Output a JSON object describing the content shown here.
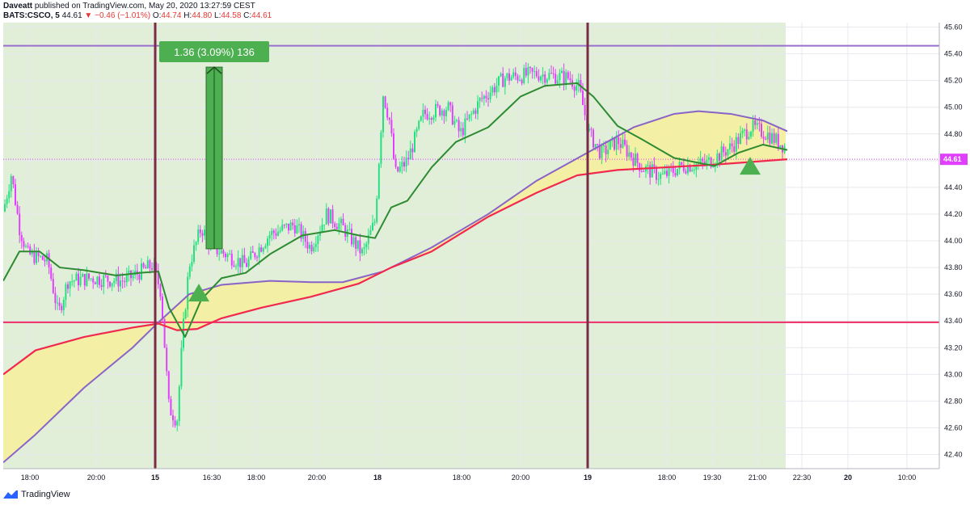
{
  "header": {
    "publisher": "Daveatt",
    "published_text": "published on TradingView.com, May 20, 2020 13:27:59 CEST",
    "symbol": "BATS:CSCO, 5",
    "last": "44.61",
    "change": "−0.46 (−1.01%)",
    "o_label": "O:",
    "o_value": "44.74",
    "h_label": "H:",
    "h_value": "44.80",
    "l_label": "L:",
    "l_value": "44.58",
    "c_label": "C:",
    "c_value": "44.61"
  },
  "brand": {
    "name": "TradingView",
    "icon": "tradingview-logo-icon"
  },
  "colors": {
    "bull": "#26e07f",
    "bear": "#e040fb",
    "session_bg": "#e1efd9",
    "fast_ma": "#2e8b32",
    "slow_ma_red": "#f2294f",
    "slow_ma_purple": "#8a63c7",
    "cloud": "#f6ee9a",
    "level_line": "#ee2d64",
    "top_line": "#9a6fd2",
    "separator": "#7b2b45",
    "arrow": "#4caf50",
    "last_badge": "#e040fb"
  },
  "chart_data": {
    "type": "candlestick",
    "title": "",
    "ylim": [
      42.3,
      45.65
    ],
    "y_ticks": [
      "45.60",
      "45.40",
      "45.20",
      "45.00",
      "44.80",
      "44.60",
      "44.40",
      "44.20",
      "44.00",
      "43.80",
      "43.60",
      "43.40",
      "43.20",
      "43.00",
      "42.80",
      "42.60",
      "42.40"
    ],
    "x_ticks": [
      "18:00",
      "20:00",
      "15",
      "16:30",
      "18:00",
      "20:00",
      "18",
      "18:00",
      "20:00",
      "19",
      "18:00",
      "19:30",
      "21:00",
      "22:30",
      "20",
      "10:00"
    ],
    "last_price_label": "44.61",
    "horizontal_levels": [
      45.46,
      43.39
    ],
    "last_price": 44.61,
    "measure_label": "1.36 (3.09%) 136",
    "measure_from": 43.94,
    "measure_to": 45.3,
    "signals": [
      {
        "type": "buy-arrow",
        "x": "16:30",
        "y": 43.6
      },
      {
        "type": "buy-arrow",
        "x": "21:00",
        "y": 44.55
      }
    ],
    "series": [
      {
        "label": "fast moving average",
        "points": [
          [
            0,
            43.7
          ],
          [
            20,
            43.92
          ],
          [
            45,
            43.92
          ],
          [
            70,
            43.8
          ],
          [
            100,
            43.78
          ],
          [
            140,
            43.74
          ],
          [
            170,
            43.76
          ],
          [
            192,
            43.77
          ],
          [
            205,
            43.5
          ],
          [
            225,
            43.28
          ],
          [
            245,
            43.56
          ],
          [
            270,
            43.72
          ],
          [
            300,
            43.76
          ],
          [
            330,
            43.9
          ],
          [
            370,
            44.04
          ],
          [
            410,
            44.08
          ],
          [
            440,
            44.04
          ],
          [
            460,
            44.02
          ],
          [
            480,
            44.25
          ],
          [
            500,
            44.3
          ],
          [
            530,
            44.55
          ],
          [
            560,
            44.74
          ],
          [
            600,
            44.85
          ],
          [
            640,
            45.08
          ],
          [
            670,
            45.16
          ],
          [
            710,
            45.18
          ],
          [
            730,
            45.08
          ],
          [
            760,
            44.86
          ],
          [
            790,
            44.76
          ],
          [
            830,
            44.62
          ],
          [
            880,
            44.56
          ],
          [
            910,
            44.66
          ],
          [
            940,
            44.72
          ],
          [
            970,
            44.68
          ]
        ]
      },
      {
        "label": "slow moving average (red)",
        "points": [
          [
            0,
            43.0
          ],
          [
            40,
            43.18
          ],
          [
            100,
            43.28
          ],
          [
            160,
            43.35
          ],
          [
            192,
            43.38
          ],
          [
            215,
            43.33
          ],
          [
            240,
            43.34
          ],
          [
            270,
            43.42
          ],
          [
            320,
            43.5
          ],
          [
            380,
            43.58
          ],
          [
            440,
            43.68
          ],
          [
            480,
            43.8
          ],
          [
            530,
            43.92
          ],
          [
            600,
            44.18
          ],
          [
            660,
            44.36
          ],
          [
            710,
            44.49
          ],
          [
            760,
            44.53
          ],
          [
            820,
            44.55
          ],
          [
            880,
            44.57
          ],
          [
            970,
            44.61
          ]
        ]
      },
      {
        "label": "slow moving average (purple)",
        "points": [
          [
            0,
            42.34
          ],
          [
            40,
            42.55
          ],
          [
            100,
            42.9
          ],
          [
            160,
            43.2
          ],
          [
            192,
            43.39
          ],
          [
            230,
            43.6
          ],
          [
            270,
            43.67
          ],
          [
            330,
            43.7
          ],
          [
            380,
            43.69
          ],
          [
            420,
            43.69
          ],
          [
            470,
            43.77
          ],
          [
            530,
            43.95
          ],
          [
            600,
            44.2
          ],
          [
            660,
            44.45
          ],
          [
            720,
            44.65
          ],
          [
            780,
            44.85
          ],
          [
            830,
            44.95
          ],
          [
            860,
            44.97
          ],
          [
            900,
            44.95
          ],
          [
            940,
            44.9
          ],
          [
            970,
            44.82
          ]
        ]
      }
    ]
  }
}
